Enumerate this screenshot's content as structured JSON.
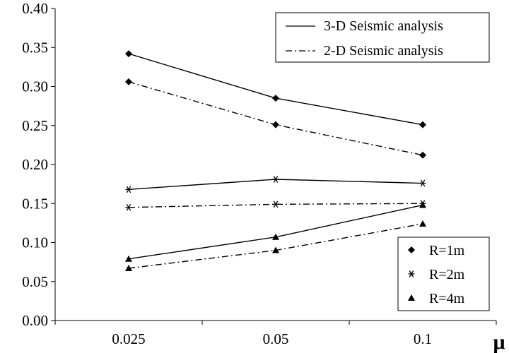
{
  "chart_data": {
    "type": "line",
    "title": "",
    "xlabel": "μ",
    "ylabel": "",
    "categories": [
      "0.025",
      "0.05",
      "0.1"
    ],
    "ylim": [
      0,
      0.4
    ],
    "yticks": [
      "0.00",
      "0.05",
      "0.10",
      "0.15",
      "0.20",
      "0.25",
      "0.30",
      "0.35",
      "0.40"
    ],
    "grid": false,
    "line_legend": {
      "placement": "top-right",
      "items": [
        {
          "label": "3-D Seismic analysis",
          "style": "solid"
        },
        {
          "label": "2-D Seismic analysis",
          "style": "dash-dot"
        }
      ]
    },
    "marker_legend": {
      "placement": "bottom-right",
      "items": [
        {
          "label": "R=1m",
          "marker": "diamond"
        },
        {
          "label": "R=2m",
          "marker": "star"
        },
        {
          "label": "R=4m",
          "marker": "triangle"
        }
      ]
    },
    "series": [
      {
        "analysis": "3-D Seismic analysis",
        "radius": "R=1m",
        "marker": "diamond",
        "style": "solid",
        "values": [
          0.342,
          0.285,
          0.251
        ]
      },
      {
        "analysis": "2-D Seismic analysis",
        "radius": "R=1m",
        "marker": "diamond",
        "style": "dash-dot",
        "values": [
          0.306,
          0.251,
          0.212
        ]
      },
      {
        "analysis": "3-D Seismic analysis",
        "radius": "R=2m",
        "marker": "star",
        "style": "solid",
        "values": [
          0.168,
          0.181,
          0.176
        ]
      },
      {
        "analysis": "2-D Seismic analysis",
        "radius": "R=2m",
        "marker": "star",
        "style": "dash-dot",
        "values": [
          0.145,
          0.149,
          0.15
        ]
      },
      {
        "analysis": "3-D Seismic analysis",
        "radius": "R=4m",
        "marker": "triangle",
        "style": "solid",
        "values": [
          0.079,
          0.107,
          0.148
        ]
      },
      {
        "analysis": "2-D Seismic analysis",
        "radius": "R=4m",
        "marker": "triangle",
        "style": "dash-dot",
        "values": [
          0.067,
          0.09,
          0.124
        ]
      }
    ],
    "colors": {
      "line": "#000000",
      "background": "#ffffff"
    }
  }
}
